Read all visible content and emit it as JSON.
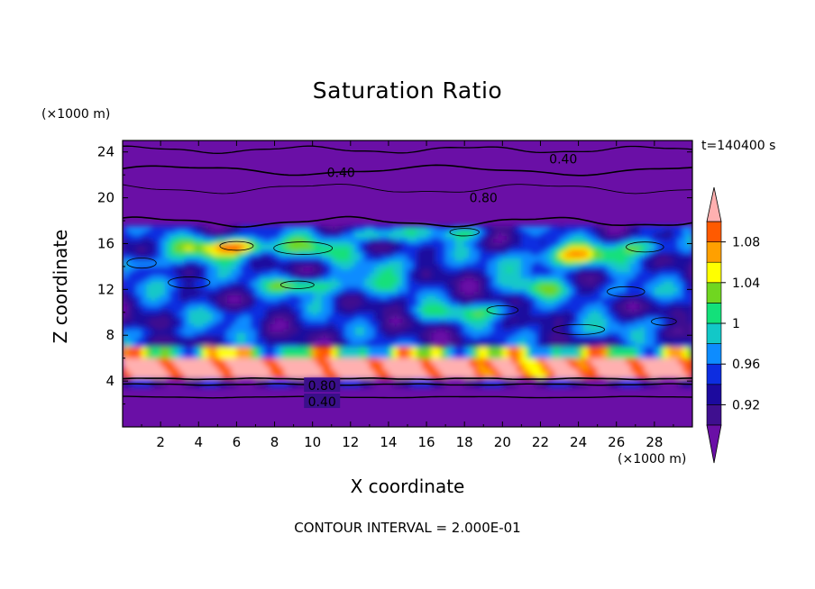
{
  "chart_data": {
    "type": "heatmap",
    "title": "Saturation Ratio",
    "xlabel": "X coordinate",
    "ylabel": "Z coordinate",
    "x_unit": "(×1000 m)",
    "y_unit": "(×1000 m)",
    "time_label": "t=140400 s",
    "footer": "CONTOUR INTERVAL = 2.000E-01",
    "xlim": [
      0,
      30
    ],
    "ylim": [
      0,
      25
    ],
    "x_ticks": [
      2,
      4,
      6,
      8,
      10,
      12,
      14,
      16,
      18,
      20,
      22,
      24,
      26,
      28
    ],
    "y_ticks": [
      4,
      8,
      12,
      16,
      20,
      24
    ],
    "colorbar": {
      "levels": [
        0.9,
        0.92,
        0.94,
        0.96,
        0.98,
        1.0,
        1.02,
        1.04,
        1.06,
        1.08,
        1.1
      ],
      "colors": [
        "#3f0f8f",
        "#1c0a9e",
        "#0d2de0",
        "#0d8cff",
        "#12c8c8",
        "#13e07a",
        "#70d620",
        "#ffff00",
        "#ffa000",
        "#ff5a00",
        "#ff2020"
      ],
      "under_color": "#6a0fa6",
      "over_color": "#ffb0b0",
      "tick_labels": [
        "0.92",
        "0.96",
        "1",
        "1.04",
        "1.08"
      ]
    },
    "contour_labels": [
      "0.40",
      "0.40",
      "0.80",
      "0.80",
      "0.40"
    ]
  }
}
